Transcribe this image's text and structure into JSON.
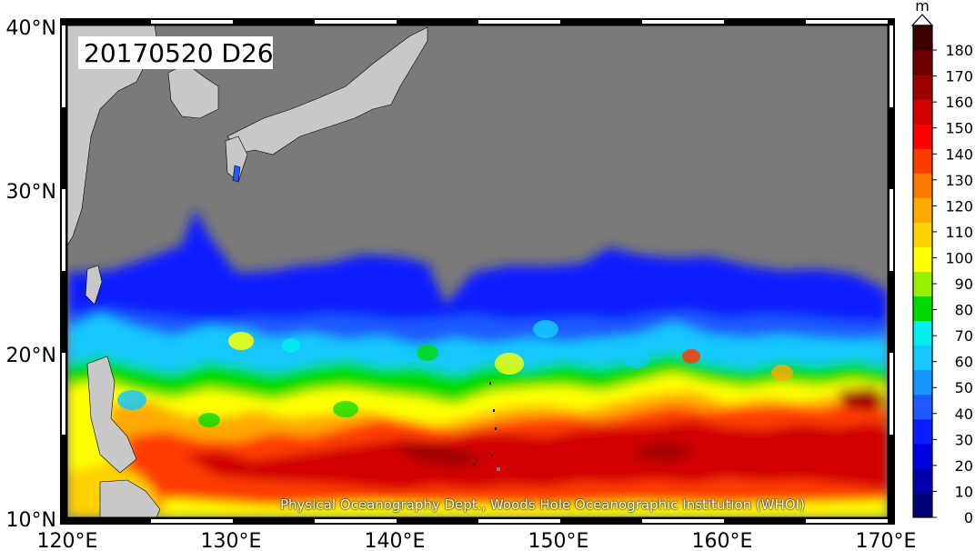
{
  "map": {
    "date_label": "20170520 D26",
    "credit": "Physical Oceanography Dept., Woods Hole Oceanographic Institution (WHOI)",
    "lat_ticks": [
      "10°N",
      "20°N",
      "30°N",
      "40°N"
    ],
    "lon_ticks": [
      "120°E",
      "130°E",
      "140°E",
      "150°E",
      "160°E",
      "170°E"
    ],
    "extent": {
      "lon": [
        120,
        170
      ],
      "lat": [
        10,
        40
      ]
    },
    "colors": {
      "land": "#c8c8c8",
      "no_data": "#7a7a7a",
      "frame": "#000000"
    }
  },
  "colorbar": {
    "unit": "m",
    "ticks": [
      "0",
      "10",
      "20",
      "30",
      "40",
      "50",
      "60",
      "70",
      "80",
      "90",
      "100",
      "110",
      "120",
      "130",
      "140",
      "150",
      "160",
      "170",
      "180"
    ],
    "colors": [
      "#00007a",
      "#0000b0",
      "#0000e6",
      "#0a1eff",
      "#1e5aff",
      "#1496ff",
      "#14c8ff",
      "#00f0f0",
      "#00dc00",
      "#96f000",
      "#ffff00",
      "#ffd200",
      "#ffaa00",
      "#ff7800",
      "#ff3c00",
      "#ff0000",
      "#d20000",
      "#a00000",
      "#6e0000",
      "#3c0000"
    ]
  }
}
